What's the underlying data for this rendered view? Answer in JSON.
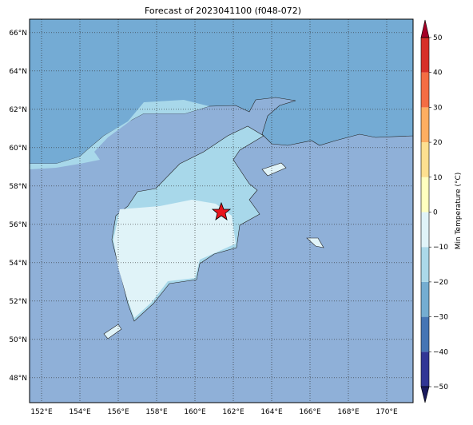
{
  "title": "Forecast of 2023041100 (f048-072)",
  "map": {
    "lonlim": [
      151.375,
      171.375
    ],
    "latlim": [
      46.7,
      66.7
    ],
    "lonticks": [
      {
        "value": 152,
        "label": "152°E"
      },
      {
        "value": 154,
        "label": "154°E"
      },
      {
        "value": 156,
        "label": "156°E"
      },
      {
        "value": 158,
        "label": "158°E"
      },
      {
        "value": 160,
        "label": "160°E"
      },
      {
        "value": 162,
        "label": "162°E"
      },
      {
        "value": 164,
        "label": "164°E"
      },
      {
        "value": 166,
        "label": "166°E"
      },
      {
        "value": 168,
        "label": "168°E"
      },
      {
        "value": 170,
        "label": "170°E"
      }
    ],
    "latticks": [
      {
        "value": 48,
        "label": "48°N"
      },
      {
        "value": 50,
        "label": "50°N"
      },
      {
        "value": 52,
        "label": "52°N"
      },
      {
        "value": 54,
        "label": "54°N"
      },
      {
        "value": 56,
        "label": "56°N"
      },
      {
        "value": 58,
        "label": "58°N"
      },
      {
        "value": 60,
        "label": "60°N"
      },
      {
        "value": 62,
        "label": "62°N"
      },
      {
        "value": 64,
        "label": "64°N"
      },
      {
        "value": 66,
        "label": "66°N"
      }
    ],
    "grid": true
  },
  "colorbar": {
    "label": "Min Temperature (°C)",
    "lim": [
      -50,
      50
    ],
    "ticks": [
      {
        "value": -50,
        "label": "−50"
      },
      {
        "value": -40,
        "label": "−40"
      },
      {
        "value": -30,
        "label": "−30"
      },
      {
        "value": -20,
        "label": "−20"
      },
      {
        "value": -10,
        "label": "−10"
      },
      0,
      10,
      20,
      30,
      40,
      50
    ],
    "colors": [
      "#313695",
      "#4575b4",
      "#74add1",
      "#abd9e9",
      "#e0f3f8",
      "#ffffbf",
      "#fee090",
      "#fdae61",
      "#f46d43",
      "#d73027"
    ],
    "under_color": "#1a1a5e",
    "over_color": "#a50026"
  }
}
